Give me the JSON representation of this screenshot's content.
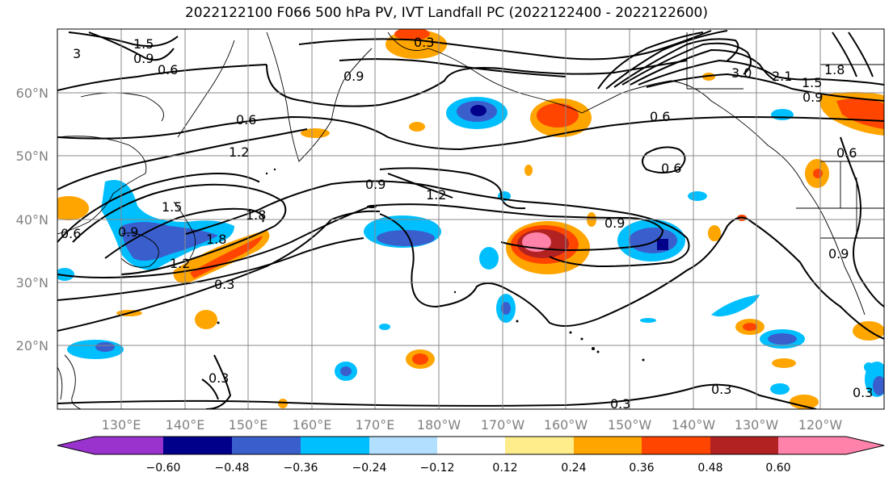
{
  "title": "2022122100 F066 500 hPa PV, IVT Landfall PC (2022122400 - 2022122600)",
  "lat_labels": [
    "60°N",
    "50°N",
    "40°N",
    "30°N",
    "20°N"
  ],
  "lon_labels": [
    "130°E",
    "140°E",
    "150°E",
    "160°E",
    "170°E",
    "180°W",
    "170°W",
    "160°W",
    "150°W",
    "140°W",
    "130°W",
    "120°W"
  ],
  "colorbar": {
    "ticks": [
      "−0.60",
      "−0.48",
      "−0.36",
      "−0.24",
      "−0.12",
      "0.12",
      "0.24",
      "0.36",
      "0.48",
      "0.60"
    ],
    "colors": [
      "#9a32cd",
      "#00008b",
      "#3a5fcd",
      "#00bfff",
      "#b2dfff",
      "#ffffff",
      "#ffec8b",
      "#ffa500",
      "#ff4500",
      "#b22222",
      "#ff82ab",
      "#ff82ab"
    ]
  },
  "contour_labels": [
    "1.5",
    "0.9",
    "0.6",
    "3",
    "0.3",
    "0.9",
    "0.6",
    "1.2",
    "0.9",
    "1.2",
    "1.5",
    "1.8",
    "0.9",
    "1.8",
    "1.2",
    "0.3",
    "0.9",
    "0.6",
    "0.6",
    "3.0",
    "2.1",
    "1.8",
    "1.5",
    "0.9",
    "0.6",
    "0.9",
    "0.3",
    "0.3",
    "0.3",
    "0.3",
    "0.6"
  ]
}
